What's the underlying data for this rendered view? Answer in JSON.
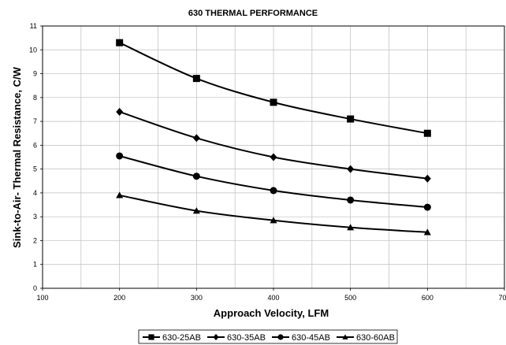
{
  "chart_data": {
    "type": "line",
    "title": "630 THERMAL PERFORMANCE",
    "xlabel": "Approach Velocity, LFM",
    "ylabel": "Sink-to-Air- Thermal Resistance, C/W",
    "xlim": [
      100,
      700
    ],
    "ylim": [
      0,
      11
    ],
    "x_ticks": [
      100,
      200,
      300,
      400,
      500,
      600,
      700
    ],
    "y_ticks": [
      0,
      1,
      2,
      3,
      4,
      5,
      6,
      7,
      8,
      9,
      10,
      11
    ],
    "x_tick_labels": [
      "100",
      "200",
      "300",
      "400",
      "500",
      "600",
      "700"
    ],
    "y_tick_labels": [
      "0",
      "1",
      "2",
      "3",
      "4",
      "5",
      "6",
      "7",
      "8",
      "9",
      "10",
      "11"
    ],
    "grid": true,
    "legend_position": "bottom",
    "x": [
      200,
      300,
      400,
      500,
      600
    ],
    "series": [
      {
        "name": "630-25AB",
        "marker": "square",
        "values": [
          10.3,
          8.8,
          7.8,
          7.1,
          6.5
        ]
      },
      {
        "name": "630-35AB",
        "marker": "diamond",
        "values": [
          7.4,
          6.3,
          5.5,
          5.0,
          4.6
        ]
      },
      {
        "name": "630-45AB",
        "marker": "circle",
        "values": [
          5.55,
          4.7,
          4.1,
          3.7,
          3.4
        ]
      },
      {
        "name": "630-60AB",
        "marker": "triangle",
        "values": [
          3.9,
          3.25,
          2.85,
          2.55,
          2.35
        ]
      }
    ],
    "colors": {
      "line": "#000000",
      "grid": "#bdbdbd",
      "frame": "#000000"
    }
  }
}
